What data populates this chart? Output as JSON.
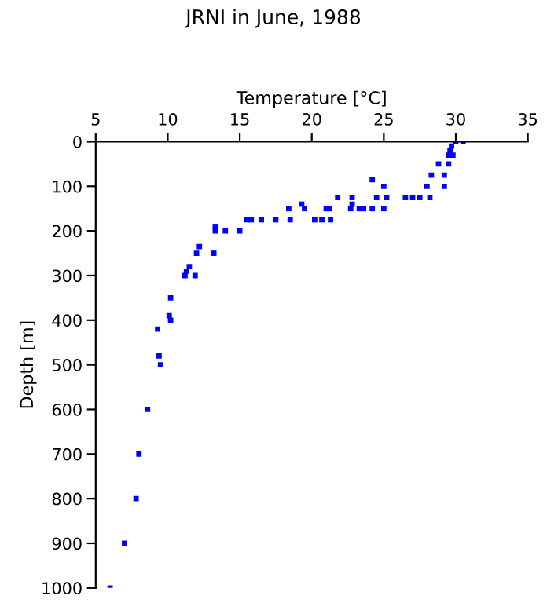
{
  "chart_data": {
    "type": "scatter",
    "title": "JRNI in June, 1988",
    "xlabel": "Temperature [°C]",
    "ylabel": "Depth [m]",
    "x": [
      6.0,
      7.0,
      7.8,
      8.0,
      8.6,
      9.5,
      9.4,
      9.3,
      10.2,
      10.1,
      10.2,
      11.2,
      11.9,
      11.3,
      11.5,
      12.0,
      13.2,
      12.2,
      13.3,
      14.0,
      15.0,
      13.3,
      15.5,
      15.8,
      16.5,
      17.5,
      18.5,
      20.2,
      20.7,
      21.3,
      18.4,
      19.5,
      21.0,
      21.2,
      22.7,
      23.3,
      23.6,
      24.2,
      25.0,
      19.3,
      22.8,
      21.8,
      22.8,
      24.5,
      25.2,
      26.5,
      27.0,
      27.5,
      28.2,
      25.0,
      28.0,
      29.2,
      24.2,
      28.3,
      29.2,
      28.8,
      29.5,
      29.5,
      29.8,
      29.6,
      29.7,
      30.0,
      30.5
    ],
    "series": [
      {
        "color": "#0000ff",
        "values": [
          1000,
          900,
          800,
          700,
          600,
          500,
          480,
          420,
          400,
          390,
          350,
          300,
          300,
          290,
          280,
          250,
          250,
          235,
          200,
          200,
          200,
          190,
          175,
          175,
          175,
          175,
          175,
          175,
          175,
          175,
          150,
          150,
          150,
          150,
          150,
          150,
          150,
          150,
          150,
          140,
          140,
          125,
          125,
          125,
          125,
          125,
          125,
          125,
          125,
          100,
          100,
          100,
          85,
          75,
          75,
          50,
          50,
          30,
          30,
          20,
          10,
          0,
          0
        ]
      }
    ],
    "xlim": [
      5,
      35
    ],
    "xticks": [
      5,
      10,
      15,
      20,
      25,
      30,
      35
    ],
    "ylim": [
      1000,
      0
    ],
    "yticks": [
      0,
      100,
      200,
      300,
      400,
      500,
      600,
      700,
      800,
      900,
      1000
    ],
    "marker": "square",
    "grid": false,
    "legend": false
  }
}
